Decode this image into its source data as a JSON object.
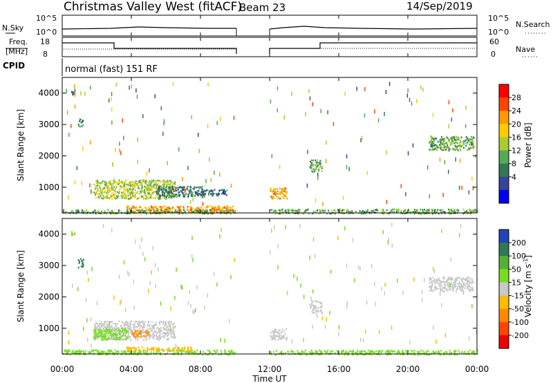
{
  "header": {
    "title": "Christmas Valley West (fitACF)",
    "beam": "Beam 23",
    "date": "14/Sep/2019"
  },
  "noise_panel": {
    "left_label": "N.Sky",
    "left_ticks": [
      "10^5",
      "10^0"
    ],
    "right_label": "N.Search",
    "right_ticks": [
      "10^5",
      "10^0"
    ]
  },
  "freq_panel": {
    "left_label_1": "Freq.",
    "left_label_2": "[MHz]",
    "left_ticks": [
      "18",
      "8"
    ],
    "right_label": "Nave",
    "right_ticks": [
      "60",
      "0"
    ]
  },
  "cpid": {
    "label": "CPID",
    "value": "normal (fast) 151 RF"
  },
  "xaxis": {
    "label": "Time UT",
    "ticks": [
      "00:00",
      "04:00",
      "08:00",
      "12:00",
      "16:00",
      "20:00",
      "00:00"
    ]
  },
  "power_colorbar": {
    "label": "Power [dB]",
    "ticks": [
      "28",
      "24",
      "20",
      "16",
      "12",
      "8",
      "4"
    ],
    "colors": [
      "#ff0000",
      "#ff4400",
      "#ff9900",
      "#ffcc00",
      "#aacc33",
      "#55aa55",
      "#337755",
      "#334499",
      "#0000ee"
    ]
  },
  "velocity_colorbar": {
    "label_main": "Velocity [m s",
    "label_sup": "-1",
    "label_end": "]",
    "ticks": [
      "200",
      "100",
      "50",
      "15",
      "-15",
      "-50",
      "-100",
      "-200"
    ],
    "colors": [
      "#2244bb",
      "#2e7a55",
      "#55b033",
      "#77dd22",
      "#c8c8c8",
      "#ffbb00",
      "#ff8800",
      "#ff4400",
      "#ee0000"
    ]
  },
  "chart_data": [
    {
      "type": "heatmap",
      "panel": "power",
      "ylabel": "Slant Range [km]",
      "xlabel": "Time UT",
      "y_ticks": [
        1000,
        2000,
        3000,
        4000
      ],
      "xlim_hours": [
        0,
        24
      ],
      "ylim_km": [
        180,
        4500
      ],
      "data_gap_hours": [
        10,
        12
      ],
      "regions": [
        {
          "t0": 3.7,
          "t1": 10.0,
          "r0": 180,
          "r1": 420,
          "level": 24
        },
        {
          "t0": 0.0,
          "t1": 10.0,
          "r0": 180,
          "r1": 300,
          "level": 12
        },
        {
          "t0": 12.0,
          "t1": 24.0,
          "r0": 180,
          "r1": 320,
          "level": 12
        },
        {
          "t0": 1.8,
          "t1": 6.5,
          "r0": 650,
          "r1": 1250,
          "level": 16
        },
        {
          "t0": 5.5,
          "t1": 8.2,
          "r0": 700,
          "r1": 1050,
          "level": 8
        },
        {
          "t0": 8.0,
          "t1": 9.5,
          "r0": 750,
          "r1": 950,
          "level": 6
        },
        {
          "t0": 12.0,
          "t1": 13.0,
          "r0": 650,
          "r1": 1000,
          "level": 22
        },
        {
          "t0": 14.3,
          "t1": 15.0,
          "r0": 1500,
          "r1": 1900,
          "level": 12
        },
        {
          "t0": 21.2,
          "t1": 23.8,
          "r0": 2200,
          "r1": 2650,
          "level": 12
        },
        {
          "t0": 0.9,
          "t1": 1.2,
          "r0": 2950,
          "r1": 3250,
          "level": 8
        },
        {
          "t0": 0.5,
          "t1": 0.7,
          "r0": 3950,
          "r1": 4100,
          "level": 6
        }
      ]
    },
    {
      "type": "heatmap",
      "panel": "velocity",
      "ylabel": "Slant Range [km]",
      "xlabel": "Time UT",
      "y_ticks": [
        1000,
        2000,
        3000,
        4000
      ],
      "xlim_hours": [
        0,
        24
      ],
      "ylim_km": [
        180,
        4500
      ],
      "data_gap_hours": [
        10,
        12
      ],
      "regions": [
        {
          "t0": 0.0,
          "t1": 10.0,
          "r0": 180,
          "r1": 330,
          "level": 30
        },
        {
          "t0": 12.0,
          "t1": 24.0,
          "r0": 180,
          "r1": 320,
          "level": 30
        },
        {
          "t0": 3.7,
          "t1": 7.5,
          "r0": 300,
          "r1": 420,
          "level": -30
        },
        {
          "t0": 1.8,
          "t1": 6.5,
          "r0": 650,
          "r1": 1250,
          "level": 0
        },
        {
          "t0": 1.8,
          "t1": 3.8,
          "r0": 650,
          "r1": 1000,
          "level": 30
        },
        {
          "t0": 4.0,
          "t1": 5.0,
          "r0": 750,
          "r1": 950,
          "level": -60
        },
        {
          "t0": 12.0,
          "t1": 13.0,
          "r0": 650,
          "r1": 1000,
          "level": 0
        },
        {
          "t0": 14.3,
          "t1": 15.0,
          "r0": 1500,
          "r1": 1900,
          "level": 0
        },
        {
          "t0": 21.2,
          "t1": 23.8,
          "r0": 2200,
          "r1": 2650,
          "level": 0
        },
        {
          "t0": 0.9,
          "t1": 1.2,
          "r0": 2950,
          "r1": 3250,
          "level": 150
        },
        {
          "t0": 0.5,
          "t1": 0.7,
          "r0": 3950,
          "r1": 4100,
          "level": 40
        }
      ]
    }
  ]
}
